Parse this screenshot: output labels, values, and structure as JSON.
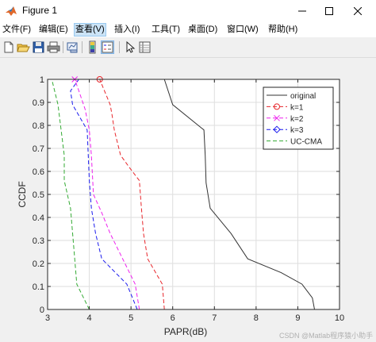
{
  "window": {
    "title": "Figure 1",
    "controls": {
      "minimize": "—",
      "maximize": "☐",
      "close": "✕"
    }
  },
  "menu": {
    "items": [
      {
        "label": "文件(F)"
      },
      {
        "label": "编辑(E)"
      },
      {
        "label": "查看(V)",
        "active": true
      },
      {
        "label": "插入(I)"
      },
      {
        "label": "工具(T)"
      },
      {
        "label": "桌面(D)"
      },
      {
        "label": "窗口(W)"
      },
      {
        "label": "帮助(H)"
      }
    ]
  },
  "toolbar": {
    "buttons": [
      {
        "icon": "new-figure-icon"
      },
      {
        "icon": "open-file-icon"
      },
      {
        "icon": "save-icon"
      },
      {
        "icon": "print-icon"
      },
      {
        "icon": "link-plot-icon"
      },
      {
        "icon": "insert-colorbar-icon"
      },
      {
        "icon": "insert-legend-icon",
        "pressed": true
      },
      {
        "icon": "edit-plot-arrow-icon"
      },
      {
        "icon": "property-inspector-icon"
      }
    ]
  },
  "chart_data": {
    "type": "line",
    "title": "",
    "xlabel": "PAPR(dB)",
    "ylabel": "CCDF",
    "xlim": [
      3,
      10
    ],
    "ylim": [
      0,
      1
    ],
    "xticks": [
      "3",
      "4",
      "5",
      "6",
      "7",
      "8",
      "9",
      "10"
    ],
    "yticks": [
      "0",
      "0.1",
      "0.2",
      "0.3",
      "0.4",
      "0.5",
      "0.6",
      "0.7",
      "0.8",
      "0.9",
      "1"
    ],
    "grid": true,
    "legend_position": "top-right",
    "series": [
      {
        "name": "original",
        "color": "#333333",
        "dash": "solid",
        "marker": "none",
        "x": [
          9.4,
          9.35,
          9.1,
          8.6,
          7.8,
          7.4,
          6.9,
          6.8,
          6.78,
          6.75,
          6.0,
          5.8
        ],
        "y": [
          0.0,
          0.05,
          0.11,
          0.16,
          0.22,
          0.33,
          0.44,
          0.55,
          0.67,
          0.78,
          0.89,
          1.0
        ]
      },
      {
        "name": "k=1",
        "color": "#e8262b",
        "dash": "dash",
        "marker": "circle",
        "x": [
          5.8,
          5.75,
          5.4,
          5.3,
          5.25,
          5.2,
          4.95,
          4.75,
          4.6,
          4.55,
          4.5,
          4.25
        ],
        "y": [
          0.0,
          0.11,
          0.22,
          0.33,
          0.44,
          0.56,
          0.62,
          0.67,
          0.78,
          0.84,
          0.89,
          1.0
        ],
        "marker_points": [
          [
            4.25,
            1.0
          ]
        ]
      },
      {
        "name": "k=2",
        "color": "#ee20ee",
        "dash": "dash",
        "marker": "x",
        "x": [
          5.2,
          5.1,
          4.5,
          4.3,
          4.1,
          4.05,
          4.0,
          3.9,
          3.75,
          3.65
        ],
        "y": [
          0.0,
          0.11,
          0.33,
          0.42,
          0.5,
          0.67,
          0.78,
          0.87,
          0.95,
          1.0
        ],
        "marker_points": [
          [
            3.65,
            1.0
          ]
        ]
      },
      {
        "name": "k=3",
        "color": "#1a1aee",
        "dash": "dash",
        "marker": "diamond",
        "x": [
          5.15,
          4.9,
          4.3,
          4.15,
          4.05,
          4.0,
          3.95,
          3.6,
          3.55,
          3.75
        ],
        "y": [
          0.0,
          0.11,
          0.22,
          0.33,
          0.44,
          0.56,
          0.78,
          0.89,
          0.95,
          1.0
        ]
      },
      {
        "name": "UC-CMA",
        "color": "#33aa33",
        "dash": "dash",
        "marker": "none",
        "x": [
          4.0,
          3.7,
          3.65,
          3.55,
          3.4,
          3.4,
          3.25,
          3.1
        ],
        "y": [
          0.0,
          0.11,
          0.22,
          0.44,
          0.56,
          0.67,
          0.89,
          1.0
        ]
      }
    ]
  },
  "watermark": "CSDN @Matlab程序猿小助手"
}
